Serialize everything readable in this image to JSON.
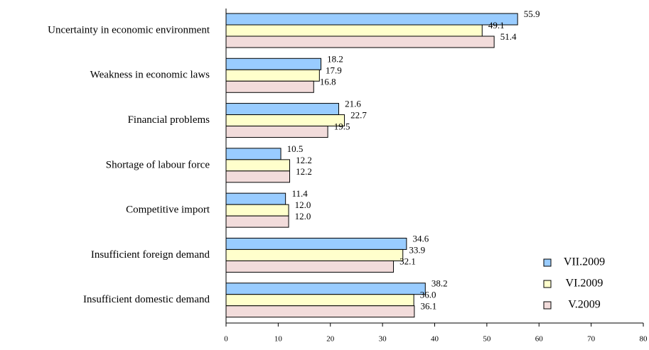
{
  "chart_data": {
    "type": "barh",
    "categories": [
      "Uncertainty in economic environment",
      "Weakness in economic laws",
      "Financial problems",
      "Shortage of labour force",
      "Competitive import",
      "Insufficient foreign demand",
      "Insufficient domestic demand"
    ],
    "series": [
      {
        "name": "VII.2009",
        "color": "#99ccff",
        "values": [
          55.9,
          18.2,
          21.6,
          10.5,
          11.4,
          34.6,
          38.2
        ],
        "value_labels": [
          "55.9",
          "18.2",
          "21.6",
          "10.5",
          "11.4",
          "34.6",
          "38.2"
        ]
      },
      {
        "name": "VI.2009",
        "color": "#ffffcc",
        "values": [
          49.1,
          17.9,
          22.7,
          12.2,
          12.0,
          33.9,
          36.0
        ],
        "value_labels": [
          "49.1",
          "17.9",
          "22.7",
          "12.2",
          "12.0",
          "33.9",
          "36.0"
        ]
      },
      {
        "name": "V.2009",
        "color": "#f2dcdb",
        "values": [
          51.4,
          16.8,
          19.5,
          12.2,
          12.0,
          32.1,
          36.1
        ],
        "value_labels": [
          "51.4",
          "16.8",
          "19.5",
          "12.2",
          "12.0",
          "32.1",
          "36.1"
        ]
      }
    ],
    "xlim": [
      0,
      80
    ],
    "xticks": [
      0,
      10,
      20,
      30,
      40,
      50,
      60,
      70,
      80
    ],
    "grid": false,
    "legend": "lower right"
  }
}
